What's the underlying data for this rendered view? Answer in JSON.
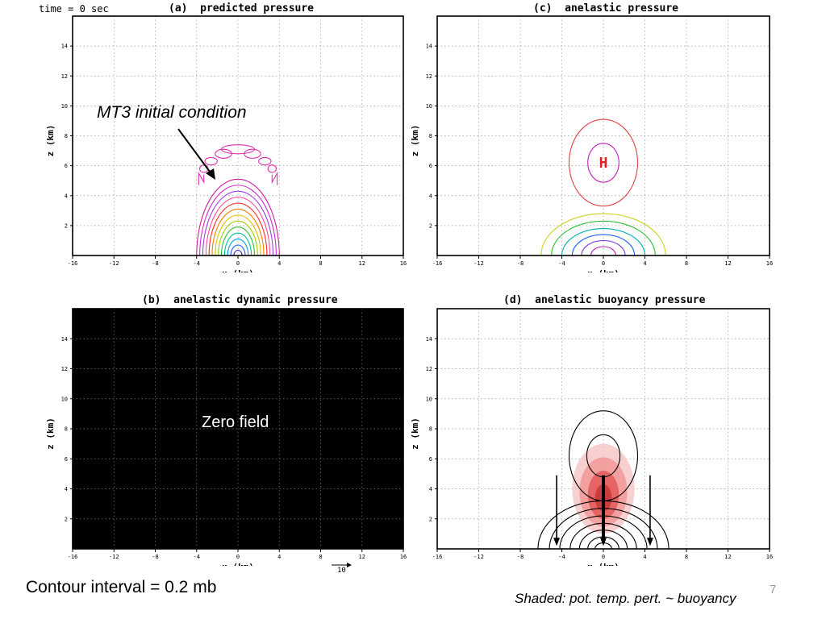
{
  "time_label": "time = 0 sec",
  "annotations": {
    "initial_condition": "MT3 initial condition",
    "zero_field": "Zero field",
    "contour_interval": "Contour interval = 0.2 mb",
    "shaded_note": "Shaded: pot. temp. pert. ~ buoyancy",
    "page_number": "7",
    "vector_scale": "10"
  },
  "colors": {
    "frame": "#000000",
    "grid": "#9a9a9a",
    "high_marker": "#e02020",
    "buoyancy_shade": "#e05050",
    "dark_panel": "#000000"
  },
  "chart_data": [
    {
      "id": "a",
      "type": "contour",
      "title": "(a)  predicted pressure",
      "xlabel": "x (km)",
      "ylabel": "z (km)",
      "xlim": [
        -16,
        16
      ],
      "ylim": [
        0,
        16
      ],
      "xticks": [
        -16,
        -12,
        -8,
        -4,
        0,
        4,
        8,
        12,
        16
      ],
      "yticks": [
        2,
        4,
        6,
        8,
        10,
        12,
        14
      ],
      "grid": true,
      "contours": [
        {
          "cx": 0,
          "cz": 0,
          "rx": 4.0,
          "rz": 5.1,
          "color": "#d020a0"
        },
        {
          "cx": 0,
          "cz": 0,
          "rx": 3.7,
          "rz": 4.7,
          "color": "#c830d0"
        },
        {
          "cx": 0,
          "cz": 0,
          "rx": 3.4,
          "rz": 4.3,
          "color": "#a040e0"
        },
        {
          "cx": 0,
          "cz": 0,
          "rx": 3.1,
          "rz": 3.9,
          "color": "#ff50a0"
        },
        {
          "cx": 0,
          "cz": 0,
          "rx": 2.8,
          "rz": 3.5,
          "color": "#ff3030"
        },
        {
          "cx": 0,
          "cz": 0,
          "rx": 2.5,
          "rz": 3.1,
          "color": "#ff8000"
        },
        {
          "cx": 0,
          "cz": 0,
          "rx": 2.2,
          "rz": 2.7,
          "color": "#e0c000"
        },
        {
          "cx": 0,
          "cz": 0,
          "rx": 1.9,
          "rz": 2.3,
          "color": "#a0d000"
        },
        {
          "cx": 0,
          "cz": 0,
          "rx": 1.6,
          "rz": 1.9,
          "color": "#30c030"
        },
        {
          "cx": 0,
          "cz": 0,
          "rx": 1.3,
          "rz": 1.5,
          "color": "#00c0a0"
        },
        {
          "cx": 0,
          "cz": 0,
          "rx": 1.0,
          "rz": 1.1,
          "color": "#00a0e0"
        },
        {
          "cx": 0,
          "cz": 0,
          "rx": 0.7,
          "rz": 0.7,
          "color": "#2060ff"
        },
        {
          "cx": 0,
          "cz": 0,
          "rx": 0.4,
          "rz": 0.35,
          "color": "#4020c0"
        }
      ],
      "cap_color": "#e030b0"
    },
    {
      "id": "c",
      "type": "contour",
      "title": "(c)  anelastic pressure",
      "xlabel": "x (km)",
      "ylabel": "z (km)",
      "xlim": [
        -16,
        16
      ],
      "ylim": [
        0,
        16
      ],
      "xticks": [
        -16,
        -12,
        -8,
        -4,
        0,
        4,
        8,
        12,
        16
      ],
      "yticks": [
        2,
        4,
        6,
        8,
        10,
        12,
        14
      ],
      "grid": true,
      "high_label": "H",
      "high_center": [
        0,
        6.2
      ],
      "contours": [
        {
          "cx": 0,
          "cz": 6.2,
          "rx": 3.3,
          "rz": 2.9,
          "color": "#e04040"
        },
        {
          "cx": 0,
          "cz": 6.2,
          "rx": 1.5,
          "rz": 1.3,
          "color": "#c020c0"
        },
        {
          "cx": 0,
          "cz": 0,
          "rx": 6.0,
          "rz": 2.8,
          "color": "#d0d020"
        },
        {
          "cx": 0,
          "cz": 0,
          "rx": 5.0,
          "rz": 2.3,
          "color": "#30c030"
        },
        {
          "cx": 0,
          "cz": 0,
          "rx": 4.0,
          "rz": 1.8,
          "color": "#00b0b0"
        },
        {
          "cx": 0,
          "cz": 0,
          "rx": 3.0,
          "rz": 1.4,
          "color": "#2060ff"
        },
        {
          "cx": 0,
          "cz": 0,
          "rx": 2.1,
          "rz": 1.0,
          "color": "#8040e0"
        },
        {
          "cx": 0,
          "cz": 0,
          "rx": 1.2,
          "rz": 0.6,
          "color": "#c020c0"
        }
      ]
    },
    {
      "id": "b",
      "type": "contour",
      "title": "(b)  anelastic dynamic pressure",
      "xlabel": "x (km)",
      "ylabel": "z (km)",
      "xlim": [
        -16,
        16
      ],
      "ylim": [
        0,
        16
      ],
      "xticks": [
        -16,
        -12,
        -8,
        -4,
        0,
        4,
        8,
        12,
        16
      ],
      "yticks": [
        2,
        4,
        6,
        8,
        10,
        12,
        14
      ],
      "grid": true,
      "background": "#000000",
      "contours": []
    },
    {
      "id": "d",
      "type": "contour",
      "title": "(d)  anelastic buoyancy pressure",
      "xlabel": "x (km)",
      "ylabel": "z (km)",
      "xlim": [
        -16,
        16
      ],
      "ylim": [
        0,
        16
      ],
      "xticks": [
        -16,
        -12,
        -8,
        -4,
        0,
        4,
        8,
        12,
        16
      ],
      "yticks": [
        2,
        4,
        6,
        8,
        10,
        12,
        14
      ],
      "grid": true,
      "shading": [
        {
          "cx": 0,
          "cz": 4.0,
          "rx": 3.0,
          "rz": 3.0,
          "color": "#f7c0c0"
        },
        {
          "cx": 0,
          "cz": 3.8,
          "rx": 2.3,
          "rz": 2.3,
          "color": "#f09090"
        },
        {
          "cx": 0,
          "cz": 3.6,
          "rx": 1.5,
          "rz": 1.6,
          "color": "#e05050"
        },
        {
          "cx": 0,
          "cz": 3.4,
          "rx": 0.8,
          "rz": 0.9,
          "color": "#c03030"
        }
      ],
      "contours": [
        {
          "cx": 0,
          "cz": 6.2,
          "rx": 3.3,
          "rz": 3.0,
          "color": "#000000"
        },
        {
          "cx": 0,
          "cz": 6.2,
          "rx": 1.6,
          "rz": 1.4,
          "color": "#000000"
        },
        {
          "cx": 0,
          "cz": 0,
          "rx": 6.3,
          "rz": 3.2,
          "color": "#000000"
        },
        {
          "cx": 0,
          "cz": 0,
          "rx": 5.2,
          "rz": 2.7,
          "color": "#000000"
        },
        {
          "cx": 0,
          "cz": 0,
          "rx": 4.2,
          "rz": 2.2,
          "color": "#000000"
        },
        {
          "cx": 0,
          "cz": 0,
          "rx": 3.2,
          "rz": 1.7,
          "color": "#000000"
        },
        {
          "cx": 0,
          "cz": 0,
          "rx": 2.3,
          "rz": 1.25,
          "color": "#000000"
        },
        {
          "cx": 0,
          "cz": 0,
          "rx": 1.5,
          "rz": 0.8,
          "color": "#000000"
        },
        {
          "cx": 0,
          "cz": 0,
          "rx": 0.8,
          "rz": 0.4,
          "color": "#000000"
        }
      ],
      "arrows": [
        {
          "x": -4.5,
          "z_from": 4.9,
          "z_to": 0.2
        },
        {
          "x": 0,
          "z_from": 4.9,
          "z_to": 0.2
        },
        {
          "x": 4.5,
          "z_from": 4.9,
          "z_to": 0.2
        }
      ]
    }
  ]
}
